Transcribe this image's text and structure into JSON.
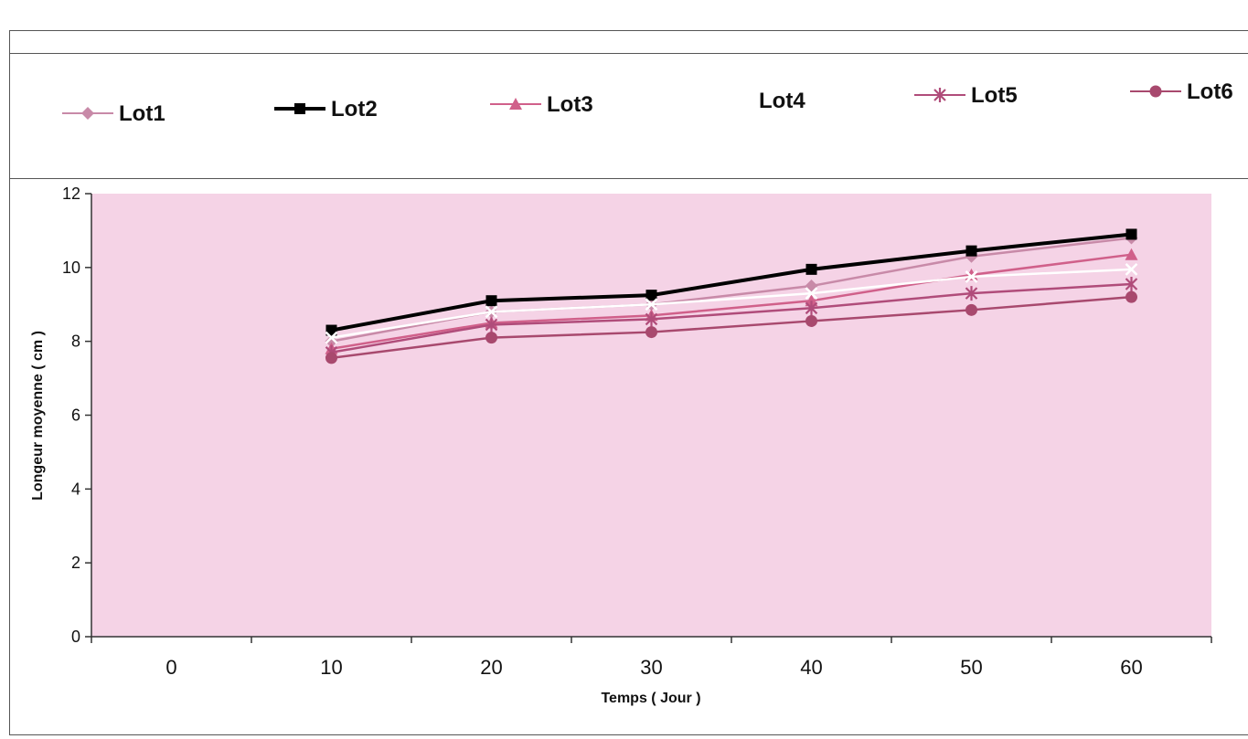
{
  "chart_data": {
    "type": "line",
    "xlabel": "Temps ( Jour )",
    "ylabel": "Longeur moyenne ( cm )",
    "categories": [
      "0",
      "10",
      "20",
      "30",
      "40",
      "50",
      "60"
    ],
    "ylim": [
      0,
      12
    ],
    "yticks": [
      "0",
      "2",
      "4",
      "6",
      "8",
      "10",
      "12"
    ],
    "grid": false,
    "legend_position": "top",
    "plot_background": "#f5d3e6",
    "series": [
      {
        "name": "Lot1",
        "color": "#c88aa8",
        "marker": "diamond",
        "values": [
          null,
          8.0,
          8.8,
          9.0,
          9.5,
          10.3,
          10.8
        ]
      },
      {
        "name": "Lot2",
        "color": "#000000",
        "marker": "square",
        "values": [
          null,
          8.3,
          9.1,
          9.25,
          9.95,
          10.45,
          10.9
        ]
      },
      {
        "name": "Lot3",
        "color": "#d0608a",
        "marker": "triangle",
        "values": [
          null,
          7.8,
          8.5,
          8.7,
          9.1,
          9.8,
          10.35
        ]
      },
      {
        "name": "Lot4",
        "color": "#ffffff",
        "marker": "x",
        "values": [
          null,
          8.1,
          8.8,
          9.0,
          9.3,
          9.75,
          9.95
        ]
      },
      {
        "name": "Lot5",
        "color": "#b04c7a",
        "marker": "star",
        "values": [
          null,
          7.7,
          8.45,
          8.6,
          8.9,
          9.3,
          9.55
        ]
      },
      {
        "name": "Lot6",
        "color": "#a8496e",
        "marker": "circle",
        "values": [
          null,
          7.55,
          8.1,
          8.25,
          8.55,
          8.85,
          9.2
        ]
      }
    ]
  }
}
